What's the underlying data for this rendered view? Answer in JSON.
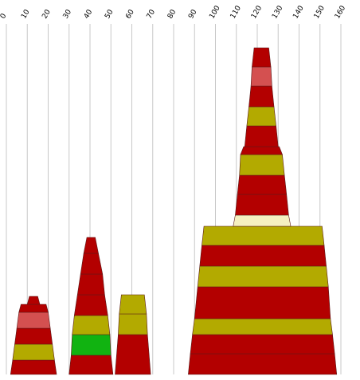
{
  "chart_data": {
    "type": "stacked-tapered-bar",
    "title": "",
    "xlabel": "",
    "ylabel": "",
    "x_ticks": [
      0,
      10,
      20,
      30,
      40,
      50,
      60,
      70,
      80,
      90,
      100,
      110,
      120,
      130,
      140,
      150,
      160
    ],
    "xlim": [
      0,
      160
    ],
    "grid": "vertical",
    "colors": {
      "dark_red": "#b30000",
      "light_red": "#d45050",
      "olive": "#b3aa00",
      "green": "#11b311",
      "cream": "#f5f0c0"
    },
    "stacks": [
      {
        "id": "stack-1",
        "segments": [
          {
            "left": 2,
            "right": 24,
            "top_left": 3,
            "top_right": 23,
            "height": 18,
            "color": "dark_red"
          },
          {
            "left": 3,
            "right": 23,
            "top_left": 4,
            "top_right": 22,
            "height": 20,
            "color": "olive"
          },
          {
            "left": 4,
            "right": 22,
            "top_left": 5,
            "top_right": 21,
            "height": 20,
            "color": "dark_red"
          },
          {
            "left": 5,
            "right": 21,
            "top_left": 6,
            "top_right": 20,
            "height": 20,
            "color": "light_red"
          },
          {
            "left": 6,
            "right": 20,
            "top_left": 7,
            "top_right": 19,
            "height": 10,
            "color": "dark_red"
          },
          {
            "left": 10,
            "right": 16,
            "top_left": 11,
            "top_right": 15,
            "height": 10,
            "color": "dark_red"
          }
        ]
      },
      {
        "id": "stack-2",
        "segments": [
          {
            "left": 30,
            "right": 51,
            "top_left": 31,
            "top_right": 50,
            "height": 24,
            "color": "dark_red"
          },
          {
            "left": 31,
            "right": 50,
            "top_left": 31.5,
            "top_right": 49.5,
            "height": 26,
            "color": "green"
          },
          {
            "left": 31.5,
            "right": 49.5,
            "top_left": 32.5,
            "top_right": 48.5,
            "height": 24,
            "color": "olive"
          },
          {
            "left": 32.5,
            "right": 48.5,
            "top_left": 34,
            "top_right": 47,
            "height": 26,
            "color": "dark_red"
          },
          {
            "left": 34,
            "right": 47,
            "top_left": 35.5,
            "top_right": 46,
            "height": 26,
            "color": "dark_red"
          },
          {
            "left": 35.5,
            "right": 46,
            "top_left": 37,
            "top_right": 44,
            "height": 26,
            "color": "dark_red"
          },
          {
            "left": 37,
            "right": 44,
            "top_left": 38.5,
            "top_right": 42.5,
            "height": 20,
            "color": "dark_red"
          }
        ]
      },
      {
        "id": "stack-3",
        "segments": [
          {
            "left": 52,
            "right": 69,
            "top_left": 53.5,
            "top_right": 67.5,
            "height": 50,
            "color": "dark_red"
          },
          {
            "left": 53.5,
            "right": 67.5,
            "top_left": 54,
            "top_right": 67,
            "height": 26,
            "color": "olive"
          },
          {
            "left": 54,
            "right": 67,
            "top_left": 55,
            "top_right": 66,
            "height": 24,
            "color": "olive"
          }
        ]
      },
      {
        "id": "stack-4",
        "segments": [
          {
            "left": 87,
            "right": 158,
            "top_left": 88,
            "top_right": 157,
            "height": 26,
            "color": "dark_red"
          },
          {
            "left": 88,
            "right": 157,
            "top_left": 89,
            "top_right": 156,
            "height": 24,
            "color": "dark_red"
          },
          {
            "left": 89,
            "right": 156,
            "top_left": 90,
            "top_right": 155,
            "height": 20,
            "color": "olive"
          },
          {
            "left": 90,
            "right": 155,
            "top_left": 91.5,
            "top_right": 154,
            "height": 40,
            "color": "dark_red"
          },
          {
            "left": 91.5,
            "right": 154,
            "top_left": 92.5,
            "top_right": 153,
            "height": 26,
            "color": "olive"
          },
          {
            "left": 92.5,
            "right": 153,
            "top_left": 93.5,
            "top_right": 152,
            "height": 26,
            "color": "dark_red"
          },
          {
            "left": 93.5,
            "right": 152,
            "top_left": 94.5,
            "top_right": 151,
            "height": 24,
            "color": "olive"
          },
          {
            "left": 108.5,
            "right": 136,
            "top_left": 109.5,
            "top_right": 135,
            "height": 14,
            "color": "cream"
          },
          {
            "left": 109.5,
            "right": 135,
            "top_left": 110.5,
            "top_right": 134,
            "height": 26,
            "color": "dark_red"
          },
          {
            "left": 110.5,
            "right": 134,
            "top_left": 111.5,
            "top_right": 133,
            "height": 24,
            "color": "dark_red"
          },
          {
            "left": 111.5,
            "right": 133,
            "top_left": 112,
            "top_right": 132,
            "height": 26,
            "color": "olive"
          },
          {
            "left": 112,
            "right": 132,
            "top_left": 113.5,
            "top_right": 130.5,
            "height": 10,
            "color": "dark_red"
          },
          {
            "left": 114,
            "right": 130,
            "top_left": 115,
            "top_right": 129,
            "height": 26,
            "color": "dark_red"
          },
          {
            "left": 115,
            "right": 129,
            "top_left": 116,
            "top_right": 128,
            "height": 24,
            "color": "olive"
          },
          {
            "left": 116,
            "right": 128,
            "top_left": 117,
            "top_right": 127,
            "height": 26,
            "color": "dark_red"
          },
          {
            "left": 117,
            "right": 127,
            "top_left": 117.5,
            "top_right": 126.5,
            "height": 24,
            "color": "light_red"
          },
          {
            "left": 117.5,
            "right": 126.5,
            "top_left": 118.5,
            "top_right": 125.5,
            "height": 24,
            "color": "dark_red"
          }
        ]
      }
    ]
  }
}
